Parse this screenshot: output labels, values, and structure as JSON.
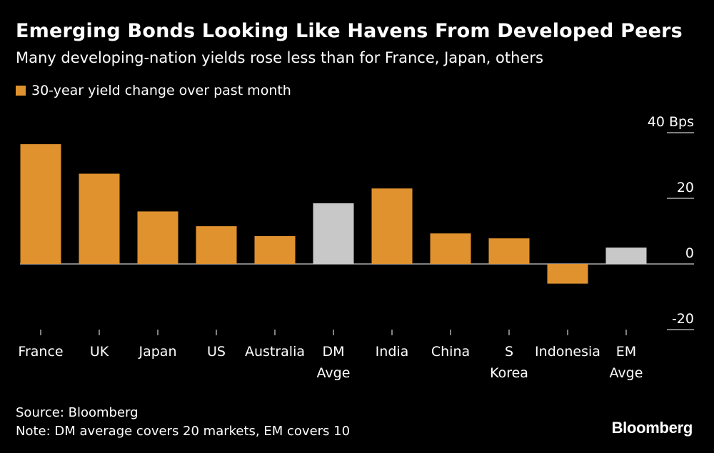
{
  "header": {
    "title": "Emerging Bonds Looking Like Havens From Developed Peers",
    "subtitle": "Many developing-nation yields rose less than for France, Japan, others",
    "legend_label": "30-year yield change over past month"
  },
  "footer": {
    "source": "Source: Bloomberg",
    "note": "Note: DM average covers 20 markets, EM covers 10",
    "brand": "Bloomberg"
  },
  "colors": {
    "bar": "#e0922f",
    "average": "#c8c8c8",
    "background": "#000000",
    "text": "#ffffff",
    "gridline": "#ffffff"
  },
  "chart_data": {
    "type": "bar",
    "title": "Emerging Bonds Looking Like Havens From Developed Peers",
    "ylabel": "Bps",
    "ylim": [
      -20,
      40
    ],
    "yticks": [
      {
        "value": 40,
        "label": "40 Bps"
      },
      {
        "value": 20,
        "label": "20"
      },
      {
        "value": 0,
        "label": "0"
      },
      {
        "value": -20,
        "label": "-20"
      }
    ],
    "categories": [
      {
        "name": "France",
        "lines": [
          "France"
        ],
        "value": 36.5,
        "kind": "country"
      },
      {
        "name": "UK",
        "lines": [
          "UK"
        ],
        "value": 27.5,
        "kind": "country"
      },
      {
        "name": "Japan",
        "lines": [
          "Japan"
        ],
        "value": 16,
        "kind": "country"
      },
      {
        "name": "US",
        "lines": [
          "US"
        ],
        "value": 11.5,
        "kind": "country"
      },
      {
        "name": "Australia",
        "lines": [
          "Australia"
        ],
        "value": 8.5,
        "kind": "country"
      },
      {
        "name": "DM Avge",
        "lines": [
          "DM",
          "Avge"
        ],
        "value": 18.5,
        "kind": "average"
      },
      {
        "name": "India",
        "lines": [
          "India"
        ],
        "value": 23,
        "kind": "country"
      },
      {
        "name": "China",
        "lines": [
          "China"
        ],
        "value": 9.3,
        "kind": "country"
      },
      {
        "name": "S Korea",
        "lines": [
          "S",
          "Korea"
        ],
        "value": 7.8,
        "kind": "country"
      },
      {
        "name": "Indonesia",
        "lines": [
          "Indonesia"
        ],
        "value": -6,
        "kind": "country"
      },
      {
        "name": "EM Avge",
        "lines": [
          "EM",
          "Avge"
        ],
        "value": 5,
        "kind": "average"
      }
    ]
  }
}
